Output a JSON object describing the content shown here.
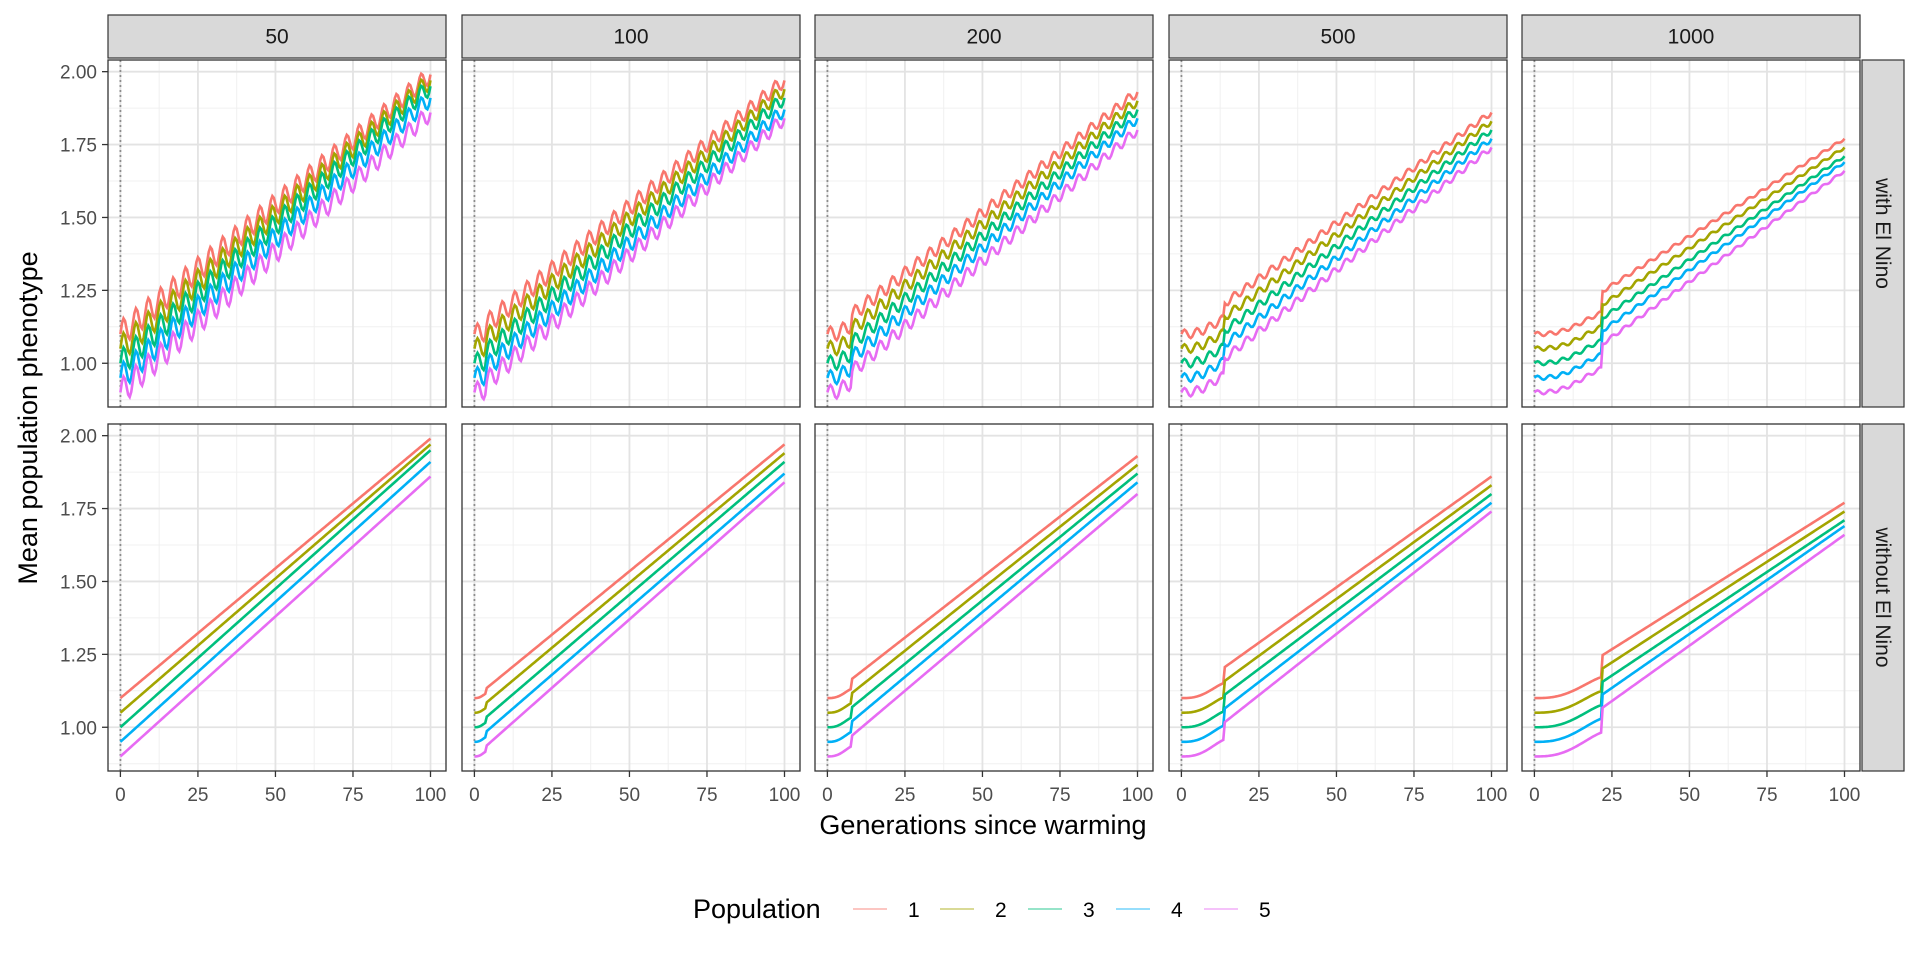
{
  "chart_data": {
    "type": "line",
    "xlabel": "Generations since warming",
    "ylabel": "Mean population phenotype",
    "x_breaks": [
      "0",
      "25",
      "50",
      "75",
      "100"
    ],
    "y_breaks": [
      "1.00",
      "1.25",
      "1.50",
      "1.75",
      "2.00"
    ],
    "xlim": [
      -4,
      105
    ],
    "ylim": [
      0.85,
      2.04
    ],
    "grid": true,
    "vline_x": 0,
    "col_facets": [
      "50",
      "100",
      "200",
      "500",
      "1000"
    ],
    "row_facets": [
      "with El Nino",
      "without El Nino"
    ],
    "legend": {
      "title": "Population",
      "position": "bottom",
      "entries": [
        "1",
        "2",
        "3",
        "4",
        "5"
      ]
    },
    "colors": {
      "1": "#F8766D",
      "2": "#A3A500",
      "3": "#00BF7D",
      "4": "#00B0F6",
      "5": "#E76BF3"
    },
    "series_summary": {
      "description": "Mean phenotype per population from generation 0 to 100; start values 1.10, 1.05, 1.00, 0.95, 0.90 for populations 1-5",
      "start_values": [
        1.1,
        1.05,
        1.0,
        0.95,
        0.9
      ],
      "end_values_by_facet": {
        "50": [
          1.99,
          1.97,
          1.95,
          1.91,
          1.86
        ],
        "100": [
          1.97,
          1.94,
          1.91,
          1.87,
          1.84
        ],
        "200": [
          1.93,
          1.9,
          1.87,
          1.84,
          1.8
        ],
        "500": [
          1.86,
          1.83,
          1.8,
          1.77,
          1.74
        ],
        "1000": [
          1.77,
          1.74,
          1.71,
          1.69,
          1.66
        ]
      },
      "el_nino_oscillation_amplitude_by_facet": {
        "50": 0.045,
        "100": 0.035,
        "200": 0.025,
        "500": 0.015,
        "1000": 0.007
      }
    }
  }
}
